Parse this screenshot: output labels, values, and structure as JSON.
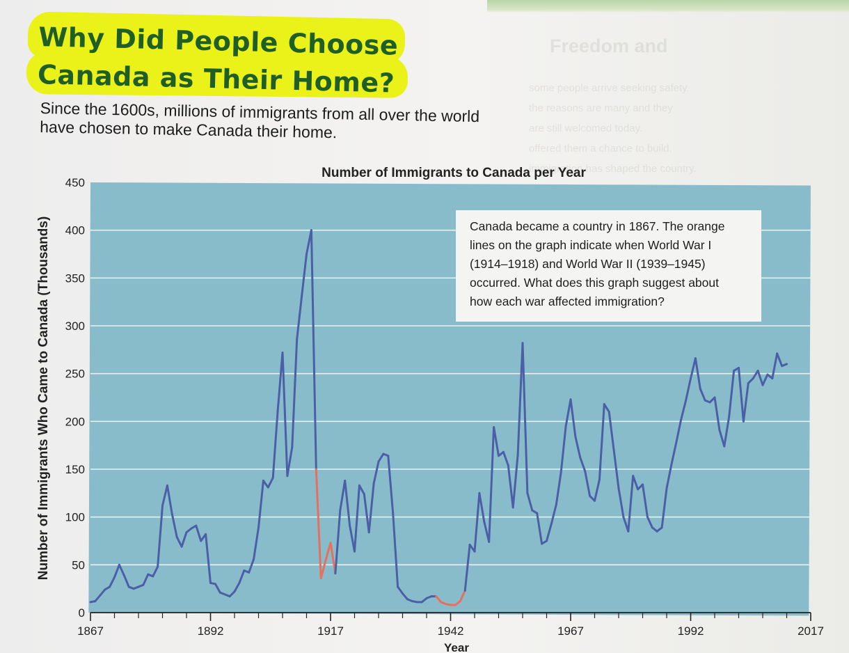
{
  "page": {
    "title_line1": "Why Did People Choose",
    "title_line2": "Canada as Their Home?",
    "intro": "Since the 1600s, millions of immigrants from all over the world\nhave chosen to make Canada their home."
  },
  "callout": {
    "text": "Canada became a country in 1867. The orange\nlines on the graph indicate when World War I\n(1914–1918) and World War II (1939–1945)\noccurred. What does this graph suggest about\nhow each war affected immigration?"
  },
  "colors": {
    "plot_background": "#89bccb",
    "gridline": "#e6f1f4",
    "series": "#4a5fa6",
    "war_highlight": "#e5705e",
    "title_text": "#1f5f25",
    "title_highlight": "#eaf219"
  },
  "chart_data": {
    "type": "line",
    "title": "Number of Immigrants to Canada per Year",
    "xlabel": "Year",
    "ylabel": "Number of Immigrants Who Came to Canada (Thousands)",
    "xlim": [
      1867,
      2017
    ],
    "ylim": [
      0,
      450
    ],
    "x_ticks": [
      1867,
      1892,
      1917,
      1942,
      1967,
      1992,
      2017
    ],
    "y_ticks": [
      0,
      50,
      100,
      150,
      200,
      250,
      300,
      350,
      400,
      450
    ],
    "grid": "horizontal",
    "war_periods": [
      [
        1914,
        1918
      ],
      [
        1939,
        1945
      ]
    ],
    "series": [
      {
        "points": [
          [
            1867,
            11
          ],
          [
            1868,
            12
          ],
          [
            1869,
            18
          ],
          [
            1870,
            24
          ],
          [
            1871,
            27
          ],
          [
            1872,
            37
          ],
          [
            1873,
            50
          ],
          [
            1874,
            39
          ],
          [
            1875,
            27
          ],
          [
            1876,
            25
          ],
          [
            1877,
            27
          ],
          [
            1878,
            29
          ],
          [
            1879,
            40
          ],
          [
            1880,
            38
          ],
          [
            1881,
            48
          ],
          [
            1882,
            112
          ],
          [
            1883,
            133
          ],
          [
            1884,
            103
          ],
          [
            1885,
            79
          ],
          [
            1886,
            69
          ],
          [
            1887,
            84
          ],
          [
            1888,
            88
          ],
          [
            1889,
            91
          ],
          [
            1890,
            75
          ],
          [
            1891,
            82
          ],
          [
            1892,
            31
          ],
          [
            1893,
            30
          ],
          [
            1894,
            21
          ],
          [
            1895,
            19
          ],
          [
            1896,
            17
          ],
          [
            1897,
            22
          ],
          [
            1898,
            31
          ],
          [
            1899,
            44
          ],
          [
            1900,
            42
          ],
          [
            1901,
            56
          ],
          [
            1902,
            89
          ],
          [
            1903,
            138
          ],
          [
            1904,
            131
          ],
          [
            1905,
            141
          ],
          [
            1906,
            211
          ],
          [
            1907,
            272
          ],
          [
            1908,
            143
          ],
          [
            1909,
            173
          ],
          [
            1910,
            286
          ],
          [
            1911,
            331
          ],
          [
            1912,
            375
          ],
          [
            1913,
            400
          ],
          [
            1914,
            150
          ],
          [
            1915,
            36
          ],
          [
            1916,
            55
          ],
          [
            1917,
            73
          ],
          [
            1918,
            41
          ],
          [
            1919,
            107
          ],
          [
            1920,
            138
          ],
          [
            1921,
            91
          ],
          [
            1922,
            64
          ],
          [
            1923,
            133
          ],
          [
            1924,
            124
          ],
          [
            1925,
            84
          ],
          [
            1926,
            135
          ],
          [
            1927,
            158
          ],
          [
            1928,
            166
          ],
          [
            1929,
            164
          ],
          [
            1930,
            104
          ],
          [
            1931,
            27
          ],
          [
            1932,
            20
          ],
          [
            1933,
            14
          ],
          [
            1934,
            12
          ],
          [
            1935,
            11
          ],
          [
            1936,
            11
          ],
          [
            1937,
            15
          ],
          [
            1938,
            17
          ],
          [
            1939,
            17
          ],
          [
            1940,
            11
          ],
          [
            1941,
            9
          ],
          [
            1942,
            8
          ],
          [
            1943,
            8
          ],
          [
            1944,
            12
          ],
          [
            1945,
            23
          ],
          [
            1946,
            71
          ],
          [
            1947,
            64
          ],
          [
            1948,
            125
          ],
          [
            1949,
            95
          ],
          [
            1950,
            74
          ],
          [
            1951,
            194
          ],
          [
            1952,
            164
          ],
          [
            1953,
            168
          ],
          [
            1954,
            154
          ],
          [
            1955,
            110
          ],
          [
            1956,
            165
          ],
          [
            1957,
            282
          ],
          [
            1958,
            125
          ],
          [
            1959,
            107
          ],
          [
            1960,
            104
          ],
          [
            1961,
            72
          ],
          [
            1962,
            75
          ],
          [
            1963,
            93
          ],
          [
            1964,
            113
          ],
          [
            1965,
            147
          ],
          [
            1966,
            195
          ],
          [
            1967,
            223
          ],
          [
            1968,
            184
          ],
          [
            1969,
            162
          ],
          [
            1970,
            148
          ],
          [
            1971,
            122
          ],
          [
            1972,
            117
          ],
          [
            1973,
            139
          ],
          [
            1974,
            218
          ],
          [
            1975,
            210
          ],
          [
            1976,
            170
          ],
          [
            1977,
            130
          ],
          [
            1978,
            100
          ],
          [
            1979,
            85
          ],
          [
            1980,
            143
          ],
          [
            1981,
            129
          ],
          [
            1982,
            134
          ],
          [
            1983,
            100
          ],
          [
            1984,
            89
          ],
          [
            1985,
            85
          ],
          [
            1986,
            89
          ],
          [
            1987,
            130
          ],
          [
            1988,
            155
          ],
          [
            1989,
            178
          ],
          [
            1990,
            202
          ],
          [
            1991,
            222
          ],
          [
            1992,
            245
          ],
          [
            1993,
            266
          ],
          [
            1994,
            234
          ],
          [
            1995,
            222
          ],
          [
            1996,
            220
          ],
          [
            1997,
            225
          ],
          [
            1998,
            191
          ],
          [
            1999,
            174
          ],
          [
            2000,
            205
          ],
          [
            2001,
            253
          ],
          [
            2002,
            256
          ],
          [
            2003,
            200
          ],
          [
            2004,
            240
          ],
          [
            2005,
            245
          ],
          [
            2006,
            253
          ],
          [
            2007,
            238
          ],
          [
            2008,
            249
          ],
          [
            2009,
            245
          ],
          [
            2010,
            271
          ],
          [
            2011,
            258
          ],
          [
            2012,
            260
          ]
        ]
      }
    ]
  }
}
